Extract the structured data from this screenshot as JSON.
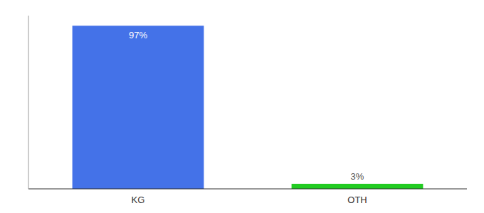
{
  "chart_data": {
    "type": "bar",
    "categories": [
      "KG",
      "OTH"
    ],
    "values": [
      97,
      3
    ],
    "value_labels": [
      "97%",
      "3%"
    ],
    "colors": [
      "#4472e8",
      "#22cc22"
    ],
    "ylim": [
      0,
      103
    ],
    "data_labels": true,
    "tick_labels": "x",
    "grid": false
  }
}
